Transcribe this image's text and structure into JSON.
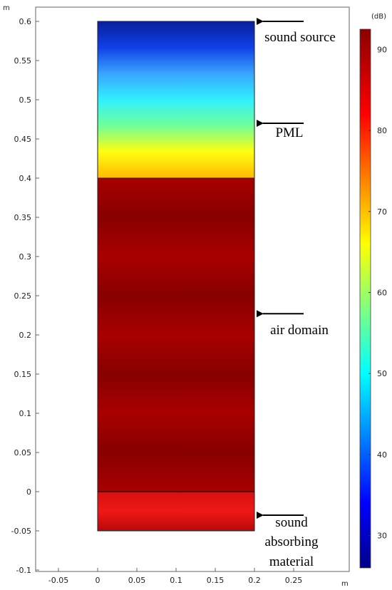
{
  "plot": {
    "x_unit": "m",
    "y_unit": "m",
    "x_ticks": [
      -0.05,
      0,
      0.05,
      0.1,
      0.15,
      0.2,
      0.25
    ],
    "x_tick_labels": [
      "-0.05",
      "0",
      "0.05",
      "0.1",
      "0.15",
      "0.2",
      "0.25"
    ],
    "y_ticks": [
      0.6,
      0.55,
      0.5,
      0.45,
      0.4,
      0.35,
      0.3,
      0.25,
      0.2,
      0.15,
      0.1,
      0.05,
      0,
      -0.05,
      -0.1
    ],
    "y_tick_labels": [
      "0.6",
      "0.55",
      "0.5",
      "0.45",
      "0.4",
      "0.35",
      "0.3",
      "0.25",
      "0.2",
      "0.15",
      "0.1",
      "0.05",
      "0",
      "-0.05",
      "-0.1"
    ],
    "x_range": [
      -0.09,
      0.31
    ],
    "y_range": [
      -0.1,
      0.61
    ],
    "domain_x": [
      0,
      0.2
    ],
    "regions": [
      {
        "name": "pml",
        "y": [
          0.4,
          0.6
        ]
      },
      {
        "name": "air-domain",
        "y": [
          0,
          0.4
        ]
      },
      {
        "name": "absorbing-material",
        "y": [
          -0.05,
          0
        ]
      }
    ]
  },
  "colorbar": {
    "unit": "(dB)",
    "ticks": [
      90,
      80,
      70,
      60,
      50,
      40,
      30
    ],
    "tick_labels": [
      "90",
      "80",
      "70",
      "60",
      "50",
      "40",
      "30"
    ],
    "range": [
      26,
      92.5
    ],
    "stops": [
      {
        "v": 26,
        "c": "#00008b"
      },
      {
        "v": 34,
        "c": "#0000ff"
      },
      {
        "v": 42,
        "c": "#0080ff"
      },
      {
        "v": 50,
        "c": "#00ffff"
      },
      {
        "v": 58,
        "c": "#80ff80"
      },
      {
        "v": 66,
        "c": "#ffff00"
      },
      {
        "v": 74,
        "c": "#ff8000"
      },
      {
        "v": 82,
        "c": "#ff0000"
      },
      {
        "v": 92.5,
        "c": "#8b0000"
      }
    ]
  },
  "annotations": [
    {
      "name": "sound-source",
      "lines": [
        "sound source"
      ],
      "arrow_y": 0.6
    },
    {
      "name": "pml",
      "lines": [
        "PML"
      ],
      "arrow_y": 0.47
    },
    {
      "name": "air-domain",
      "lines": [
        "air domain"
      ],
      "arrow_y": 0.227
    },
    {
      "name": "sound-absorbing-material",
      "lines": [
        "sound",
        "absorbing",
        "material"
      ],
      "arrow_y": -0.03
    }
  ],
  "colors": {
    "pml_gradient": [
      "#0a1f9a",
      "#1040e8",
      "#3aa4ff",
      "#30f0ff",
      "#6fff9a",
      "#ffff10",
      "#ffb800"
    ],
    "air_band_light": "#a80000",
    "air_band_dark": "#880000",
    "absorber_gradient": [
      "#d41010",
      "#f01818",
      "#b80808"
    ]
  }
}
